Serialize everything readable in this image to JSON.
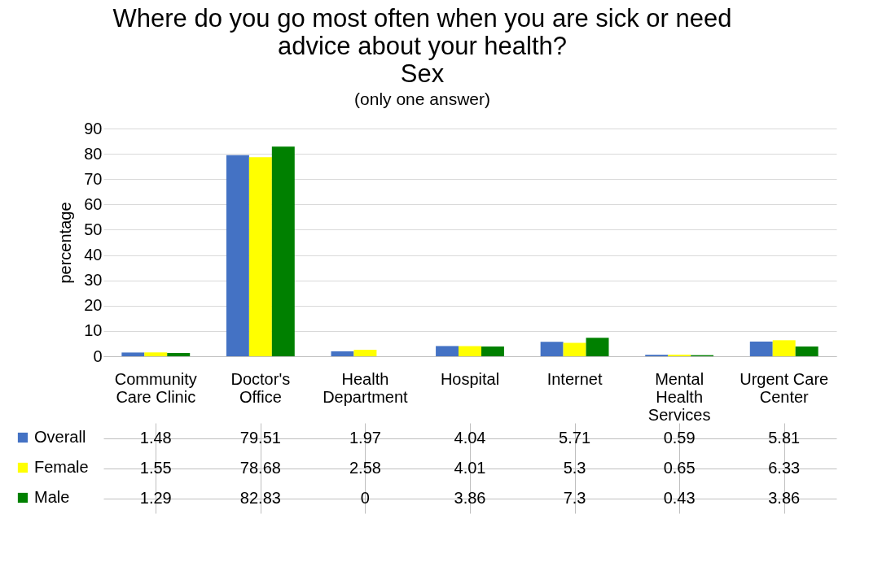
{
  "chart_data": {
    "type": "bar",
    "title": "Where do you go most often when you are sick or need advice about your health?",
    "subtitle": "Sex",
    "annotations": [
      "(only one answer)"
    ],
    "ylabel": "percentage",
    "categories": [
      "Community Care Clinic",
      "Doctor's Office",
      "Health Department",
      "Hospital",
      "Internet",
      "Mental Health Services",
      "Urgent Care Center"
    ],
    "series": [
      {
        "name": "Overall",
        "color": "#4472c4",
        "values": [
          1.48,
          79.51,
          1.97,
          4.04,
          5.71,
          0.59,
          5.81
        ]
      },
      {
        "name": "Female",
        "color": "#ffff00",
        "values": [
          1.55,
          78.68,
          2.58,
          4.01,
          5.3,
          0.65,
          6.33
        ]
      },
      {
        "name": "Male",
        "color": "#008000",
        "values": [
          1.29,
          82.83,
          0,
          3.86,
          7.3,
          0.43,
          3.86
        ]
      }
    ],
    "ylim": [
      0,
      90
    ],
    "yticks": [
      0,
      10,
      20,
      30,
      40,
      50,
      60,
      70,
      80,
      90
    ],
    "grid": "y",
    "legend": "bottom",
    "data_labels": true
  }
}
